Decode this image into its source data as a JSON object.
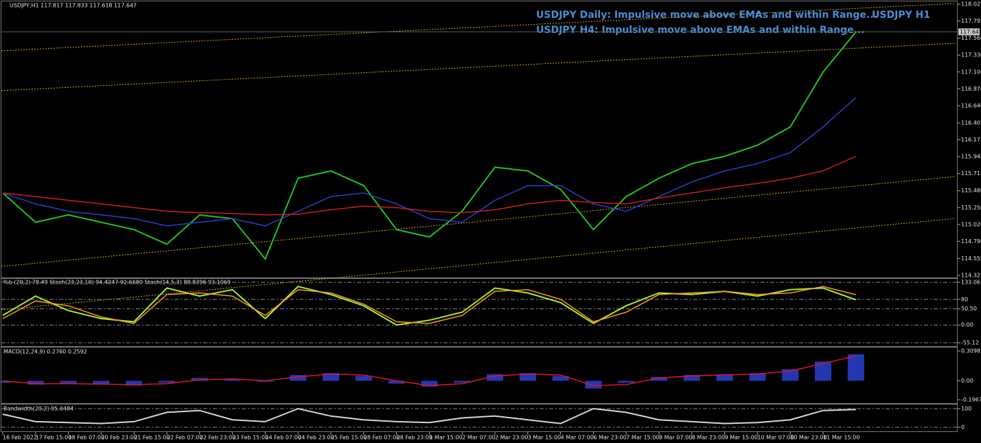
{
  "chart_data": [
    {
      "type": "line",
      "title": "USDJPY,H1  117.817 117.833 117.618 117.647",
      "annotations": [
        "USDJPY Daily: Impulsive move above EMAs and within Range...",
        "USDJPY H4: Impulsive move above EMAs and within Range...",
        "USDJPY H1"
      ],
      "last_price": 117.647,
      "ylim": [
        114.325,
        118.025
      ],
      "yticks": [
        118.025,
        117.795,
        {
          "value": 117.56,
          "label": "117.560"
        },
        {
          "value": 117.33,
          "label": "117.330"
        },
        {
          "value": 117.1,
          "label": "117.100"
        },
        {
          "value": 116.87,
          "label": "116.870"
        },
        {
          "value": 116.64,
          "label": "116.640"
        },
        116.405,
        116.175,
        115.945,
        115.715,
        {
          "value": 115.48,
          "label": "115.480"
        },
        {
          "value": 115.25,
          "label": "115.250"
        },
        {
          "value": 115.02,
          "label": "115.020"
        },
        {
          "value": 114.79,
          "label": "114.790"
        },
        114.555,
        114.325
      ],
      "series": [
        {
          "color": "#22c322",
          "values": [
            115.45,
            115.05,
            115.15,
            115.05,
            114.95,
            114.75,
            115.15,
            115.1,
            114.55,
            115.65,
            115.75,
            115.55,
            114.95,
            114.85,
            115.2,
            115.8,
            115.75,
            115.5,
            114.95,
            115.4,
            115.65,
            115.85,
            115.95,
            116.1,
            116.35,
            117.1,
            117.647
          ]
        },
        {
          "color": "#2a3fd0",
          "values": [
            115.45,
            115.3,
            115.2,
            115.15,
            115.1,
            115.0,
            115.05,
            115.1,
            115.0,
            115.2,
            115.4,
            115.45,
            115.3,
            115.1,
            115.05,
            115.35,
            115.55,
            115.55,
            115.3,
            115.2,
            115.4,
            115.6,
            115.75,
            115.85,
            116.0,
            116.35,
            116.75
          ]
        },
        {
          "color": "#d01e1e",
          "values": [
            115.45,
            115.4,
            115.35,
            115.3,
            115.25,
            115.2,
            115.18,
            115.17,
            115.15,
            115.16,
            115.22,
            115.27,
            115.25,
            115.2,
            115.18,
            115.22,
            115.3,
            115.35,
            115.32,
            115.3,
            115.38,
            115.45,
            115.52,
            115.58,
            115.65,
            115.75,
            115.95
          ]
        }
      ]
    },
    {
      "type": "line",
      "title": "%b (20,2) 78.49  Stoch(23,23,10) 94.4247 92.6680  Stoch(14,5,3) 88.8396 93.1069",
      "ylim": [
        -55.12,
        133.06
      ],
      "grid": true,
      "yticks": [
        133.06,
        80,
        {
          "value": 50.5,
          "label": "50.50"
        },
        {
          "value": 0,
          "label": "0.00"
        },
        -55.12
      ],
      "series": [
        {
          "color": "#a6f02a",
          "values": [
            30,
            90,
            45,
            20,
            10,
            115,
            90,
            110,
            20,
            120,
            95,
            60,
            0,
            15,
            40,
            115,
            100,
            70,
            5,
            60,
            100,
            95,
            105,
            90,
            110,
            115,
            78.49
          ]
        },
        {
          "color": "#ff9a1e",
          "values": [
            20,
            75,
            60,
            25,
            5,
            95,
            100,
            90,
            30,
            110,
            100,
            65,
            10,
            5,
            30,
            105,
            110,
            80,
            10,
            40,
            95,
            100,
            105,
            95,
            100,
            120,
            94.4247
          ]
        }
      ]
    },
    {
      "type": "bar",
      "title": "MACD(12,24,9) 0.2760 0.2592",
      "ylim": [
        -0.1967,
        0.3098
      ],
      "yticks": [
        0.3098,
        {
          "value": 0,
          "label": "0.00"
        },
        -0.1967
      ],
      "series": [
        {
          "color": "#2a3fd0",
          "values": [
            -0.02,
            -0.04,
            -0.03,
            -0.04,
            -0.05,
            -0.02,
            0.03,
            0.02,
            -0.01,
            0.06,
            0.08,
            0.05,
            -0.03,
            -0.06,
            -0.02,
            0.07,
            0.08,
            0.05,
            -0.08,
            -0.02,
            0.04,
            0.06,
            0.07,
            0.08,
            0.12,
            0.2,
            0.276
          ]
        },
        {
          "color": "#e0142a",
          "values": [
            0.0,
            -0.03,
            -0.03,
            -0.035,
            -0.04,
            -0.03,
            0.01,
            0.02,
            0.0,
            0.04,
            0.07,
            0.06,
            0.0,
            -0.05,
            -0.03,
            0.05,
            0.07,
            0.06,
            -0.05,
            -0.04,
            0.03,
            0.05,
            0.06,
            0.07,
            0.1,
            0.18,
            0.2592
          ]
        }
      ]
    },
    {
      "type": "line",
      "title": "Bandwidth(20,2) 95.0484",
      "ylim": [
        0,
        100
      ],
      "grid": true,
      "yticks": [
        100,
        0
      ],
      "categories": [
        "16 Feb 2022",
        "17 Feb 15:00",
        "18 Feb 07:00",
        "20 Feb 23:00",
        "21 Feb 15:00",
        "22 Feb 07:00",
        "22 Feb 23:00",
        "23 Feb 15:00",
        "24 Feb 07:00",
        "24 Feb 23:00",
        "25 Feb 15:00",
        "28 Feb 07:00",
        "28 Feb 23:00",
        "1 Mar 15:00",
        "2 Mar 07:00",
        "2 Mar 23:00",
        "3 Mar 15:00",
        "4 Mar 07:00",
        "6 Mar 23:00",
        "7 Mar 15:00",
        "8 Mar 07:00",
        "8 Mar 23:00",
        "9 Mar 15:00",
        "10 Mar 07:00",
        "10 Mar 23:00",
        "11 Mar 15:00",
        null
      ],
      "series": [
        {
          "color": "#d8d8d8",
          "values": [
            70,
            30,
            25,
            20,
            30,
            80,
            90,
            40,
            30,
            100,
            60,
            40,
            30,
            25,
            50,
            60,
            40,
            20,
            100,
            80,
            40,
            30,
            20,
            25,
            40,
            90,
            95.0484
          ]
        }
      ]
    }
  ]
}
